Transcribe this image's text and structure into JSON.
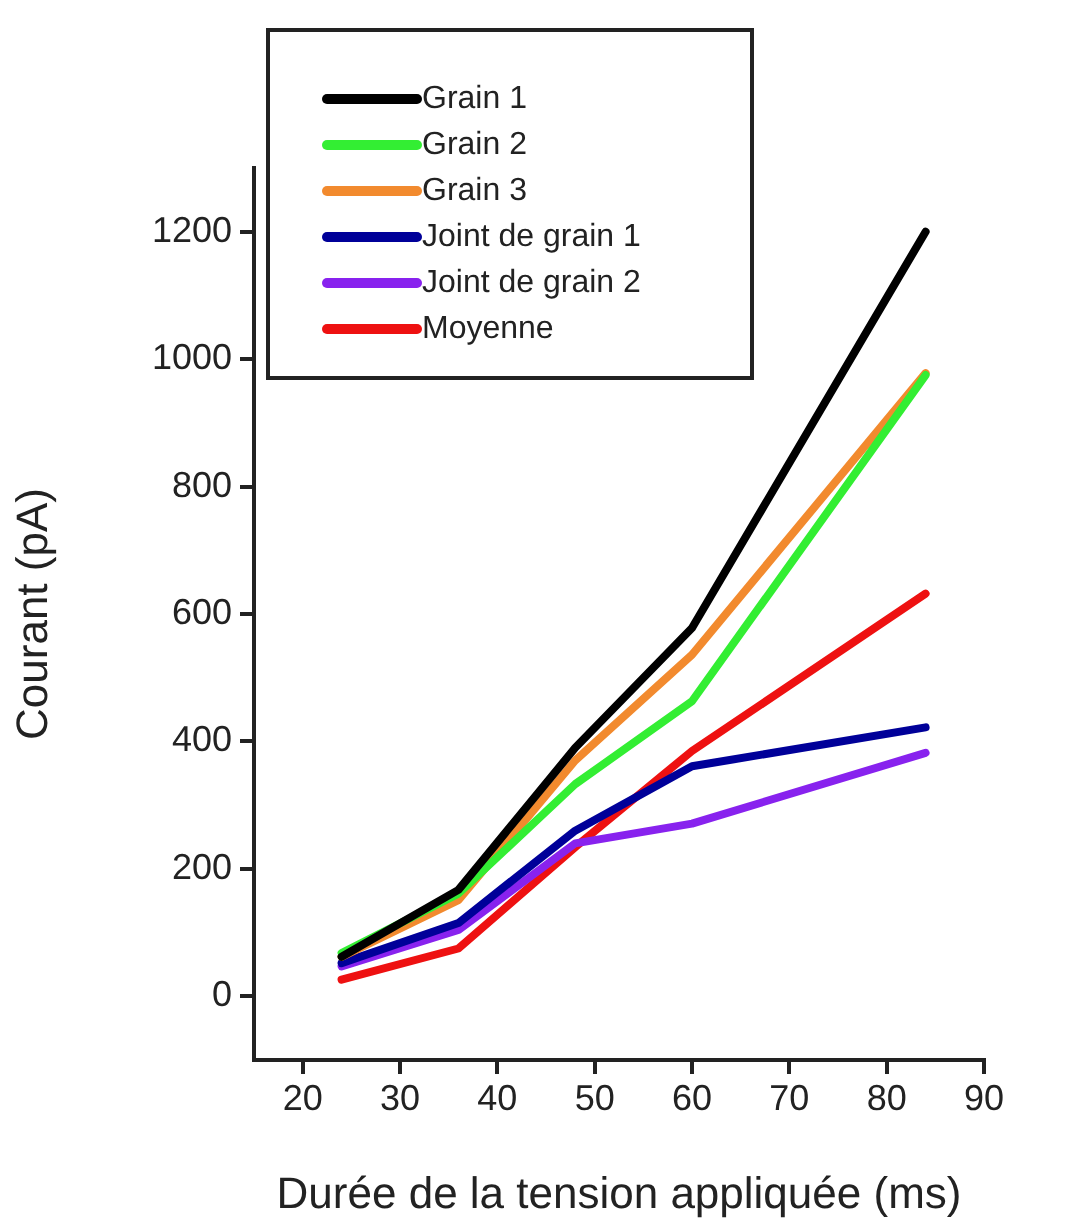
{
  "chart_data": {
    "type": "line",
    "xlabel": "Durée de la tension appliquée (ms)",
    "ylabel": "Courant (pA)",
    "x": [
      24,
      36,
      48,
      60,
      84
    ],
    "xlim": [
      15,
      90
    ],
    "xticks": [
      20,
      30,
      40,
      50,
      60,
      70,
      80,
      90
    ],
    "ylim": [
      -100,
      1300
    ],
    "yticks": [
      0,
      200,
      400,
      600,
      800,
      1000,
      1200
    ],
    "grid": false,
    "legend": "top left",
    "marker": "none",
    "line_style": "solid",
    "series": [
      {
        "name": "Grain 1",
        "color": "#000000",
        "values": [
          62,
          167,
          390,
          578,
          1200
        ]
      },
      {
        "name": "Grain 2",
        "color": "#33ee33",
        "values": [
          68,
          161,
          333,
          463,
          975
        ]
      },
      {
        "name": "Grain 3",
        "color": "#f28a2e",
        "values": [
          62,
          151,
          370,
          536,
          978
        ]
      },
      {
        "name": "Joint de grain 1",
        "color": "#000099",
        "values": [
          52,
          115,
          260,
          361,
          422
        ]
      },
      {
        "name": "Joint de grain 2",
        "color": "#8822ee",
        "values": [
          47,
          104,
          240,
          271,
          382
        ]
      },
      {
        "name": "Moyenne",
        "color": "#ee1111",
        "values": [
          26,
          75,
          234,
          385,
          632
        ]
      }
    ]
  }
}
